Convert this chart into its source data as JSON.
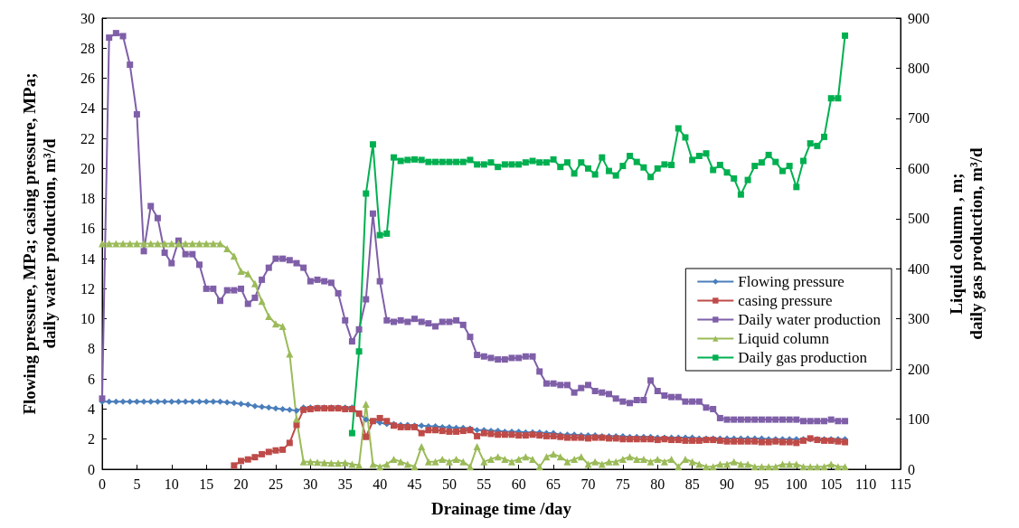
{
  "chart_data": {
    "type": "line",
    "xlabel": "Drainage time /day",
    "ylabel": "Flowing pressure, MPa; casing pressure, MPa; daily water production, m³/d",
    "y2label": "Liquid column , m; daily gas production, m³/d",
    "x": [
      0,
      1,
      2,
      3,
      4,
      5,
      6,
      7,
      8,
      9,
      10,
      11,
      12,
      13,
      14,
      15,
      16,
      17,
      18,
      19,
      20,
      21,
      22,
      23,
      24,
      25,
      26,
      27,
      28,
      29,
      30,
      31,
      32,
      33,
      34,
      35,
      36,
      37,
      38,
      39,
      40,
      41,
      42,
      43,
      44,
      45,
      46,
      47,
      48,
      49,
      50,
      51,
      52,
      53,
      54,
      55,
      56,
      57,
      58,
      59,
      60,
      61,
      62,
      63,
      64,
      65,
      66,
      67,
      68,
      69,
      70,
      71,
      72,
      73,
      74,
      75,
      76,
      77,
      78,
      79,
      80,
      81,
      82,
      83,
      84,
      85,
      86,
      87,
      88,
      89,
      90,
      91,
      92,
      93,
      94,
      95,
      96,
      97,
      98,
      99,
      100,
      101,
      102,
      103,
      104,
      105,
      106,
      107
    ],
    "series": [
      {
        "name": "Flowing pressure",
        "color": "#4a7ebb",
        "marker": "diamond",
        "values": [
          4.5,
          4.5,
          4.5,
          4.5,
          4.5,
          4.5,
          4.5,
          4.5,
          4.5,
          4.5,
          4.5,
          4.5,
          4.5,
          4.5,
          4.5,
          4.5,
          4.5,
          4.5,
          4.45,
          4.4,
          4.35,
          4.3,
          4.2,
          4.15,
          4.1,
          4.05,
          4.0,
          3.95,
          3.9,
          4.1,
          4.1,
          4.1,
          4.1,
          4.1,
          4.1,
          4.1,
          4.1,
          3.7,
          3.3,
          3.2,
          3.1,
          3.0,
          3.0,
          2.95,
          2.95,
          2.9,
          2.9,
          2.85,
          2.85,
          2.8,
          2.8,
          2.75,
          2.75,
          2.7,
          2.6,
          2.6,
          2.55,
          2.55,
          2.5,
          2.5,
          2.5,
          2.45,
          2.45,
          2.45,
          2.4,
          2.4,
          2.3,
          2.3,
          2.3,
          2.25,
          2.25,
          2.25,
          2.2,
          2.2,
          2.2,
          2.2,
          2.15,
          2.15,
          2.15,
          2.15,
          2.1,
          2.1,
          2.1,
          2.1,
          2.1,
          2.1,
          2.05,
          2.05,
          2.05,
          2.05,
          2.05,
          2.05,
          2.05,
          2.05,
          2.05,
          2.05,
          2.0,
          2.0,
          2.0,
          2.0,
          2.0,
          2.0,
          2.0,
          2.0,
          2.0,
          2.0,
          2.0,
          2.0
        ]
      },
      {
        "name": "casing pressure",
        "color": "#be4b48",
        "marker": "square",
        "values": [
          null,
          null,
          null,
          null,
          null,
          null,
          null,
          null,
          null,
          null,
          null,
          null,
          null,
          null,
          null,
          null,
          null,
          null,
          null,
          0.25,
          0.55,
          0.65,
          0.8,
          1.0,
          1.15,
          1.25,
          1.3,
          1.75,
          2.95,
          3.95,
          4.0,
          4.05,
          4.05,
          4.05,
          4.05,
          4.0,
          4.0,
          3.7,
          2.15,
          3.2,
          3.4,
          3.2,
          2.9,
          2.8,
          2.8,
          2.8,
          2.4,
          2.6,
          2.6,
          2.55,
          2.5,
          2.5,
          2.55,
          2.6,
          2.2,
          2.4,
          2.35,
          2.3,
          2.3,
          2.3,
          2.25,
          2.25,
          2.3,
          2.25,
          2.2,
          2.2,
          2.15,
          2.1,
          2.1,
          2.1,
          2.05,
          2.1,
          2.1,
          2.05,
          2.05,
          2.0,
          2.0,
          2.0,
          2.0,
          2.0,
          1.95,
          2.0,
          1.95,
          1.95,
          1.9,
          1.9,
          1.9,
          1.95,
          1.95,
          1.9,
          1.85,
          1.85,
          1.85,
          1.85,
          1.85,
          1.8,
          1.8,
          1.85,
          1.8,
          1.8,
          1.75,
          1.9,
          2.05,
          1.95,
          1.9,
          1.9,
          1.85,
          1.8
        ]
      },
      {
        "name": "Daily water production",
        "color": "#7f5fa8",
        "marker": "square",
        "values": [
          4.7,
          28.7,
          29.0,
          28.8,
          26.9,
          23.6,
          14.5,
          17.5,
          16.7,
          14.4,
          13.7,
          15.2,
          14.3,
          14.3,
          13.6,
          12.0,
          12.0,
          11.2,
          11.9,
          11.9,
          12.0,
          11.0,
          11.4,
          12.6,
          13.4,
          14.0,
          14.0,
          13.9,
          13.7,
          13.4,
          12.5,
          12.6,
          12.5,
          12.4,
          11.7,
          9.9,
          8.5,
          9.3,
          11.3,
          17.0,
          12.5,
          9.9,
          9.8,
          9.9,
          9.8,
          10.0,
          9.8,
          9.7,
          9.5,
          9.8,
          9.8,
          9.9,
          9.6,
          8.8,
          7.6,
          7.5,
          7.4,
          7.3,
          7.3,
          7.4,
          7.4,
          7.5,
          7.5,
          6.5,
          5.7,
          5.7,
          5.6,
          5.6,
          5.1,
          5.4,
          5.6,
          5.2,
          5.1,
          5.0,
          4.7,
          4.5,
          4.4,
          4.6,
          4.6,
          5.9,
          5.2,
          4.9,
          4.8,
          4.8,
          4.5,
          4.5,
          4.5,
          4.1,
          4.0,
          3.4,
          3.3,
          3.3,
          3.3,
          3.3,
          3.3,
          3.3,
          3.3,
          3.3,
          3.3,
          3.3,
          3.3,
          3.2,
          3.2,
          3.2,
          3.2,
          3.3,
          3.2,
          3.2
        ]
      },
      {
        "name": "Liquid column",
        "color": "#9bbb59",
        "marker": "triangle",
        "axis": "y2",
        "values": [
          450,
          450,
          450,
          450,
          450,
          450,
          450,
          450,
          450,
          450,
          450,
          450,
          450,
          450,
          450,
          450,
          450,
          450,
          440,
          425,
          395,
          390,
          370,
          335,
          305,
          290,
          285,
          230,
          100,
          15,
          15,
          14,
          13,
          12,
          12,
          13,
          10,
          8,
          130,
          10,
          5,
          10,
          20,
          15,
          10,
          5,
          45,
          15,
          15,
          20,
          15,
          20,
          15,
          5,
          45,
          15,
          20,
          25,
          20,
          15,
          20,
          25,
          20,
          5,
          25,
          30,
          25,
          15,
          20,
          25,
          10,
          15,
          10,
          15,
          15,
          20,
          25,
          20,
          20,
          15,
          20,
          15,
          20,
          5,
          20,
          15,
          10,
          5,
          5,
          10,
          10,
          15,
          10,
          10,
          5,
          5,
          5,
          5,
          10,
          10,
          10,
          5,
          5,
          5,
          5,
          10,
          5,
          5
        ]
      },
      {
        "name": "Daily gas production",
        "color": "#00b050",
        "marker": "square",
        "axis": "y2",
        "values": [
          null,
          null,
          null,
          null,
          null,
          null,
          null,
          null,
          null,
          null,
          null,
          null,
          null,
          null,
          null,
          null,
          null,
          null,
          null,
          null,
          null,
          null,
          null,
          null,
          null,
          null,
          null,
          null,
          null,
          null,
          null,
          null,
          null,
          null,
          null,
          null,
          72,
          235,
          550,
          648,
          467,
          470,
          622,
          615,
          617,
          618,
          617,
          613,
          613,
          613,
          613,
          613,
          613,
          617,
          608,
          608,
          612,
          603,
          608,
          608,
          608,
          612,
          615,
          612,
          612,
          618,
          603,
          612,
          590,
          612,
          600,
          588,
          622,
          595,
          586,
          605,
          625,
          613,
          602,
          583,
          600,
          608,
          607,
          680,
          662,
          617,
          625,
          630,
          597,
          607,
          592,
          580,
          548,
          577,
          605,
          612,
          627,
          613,
          595,
          605,
          563,
          615,
          650,
          645,
          663,
          740,
          740,
          865
        ]
      }
    ],
    "xlim": [
      0,
      115
    ],
    "xticks": [
      0,
      5,
      10,
      15,
      20,
      25,
      30,
      35,
      40,
      45,
      50,
      55,
      60,
      65,
      70,
      75,
      80,
      85,
      90,
      95,
      100,
      105,
      110,
      115
    ],
    "ylim": [
      0,
      30
    ],
    "yticks": [
      0,
      2,
      4,
      6,
      8,
      10,
      12,
      14,
      16,
      18,
      20,
      22,
      24,
      26,
      28,
      30
    ],
    "y2lim": [
      0,
      900
    ],
    "y2ticks": [
      0,
      100,
      200,
      300,
      400,
      500,
      600,
      700,
      800,
      900
    ],
    "grid": false,
    "legend": "right",
    "line_style": "solid"
  }
}
